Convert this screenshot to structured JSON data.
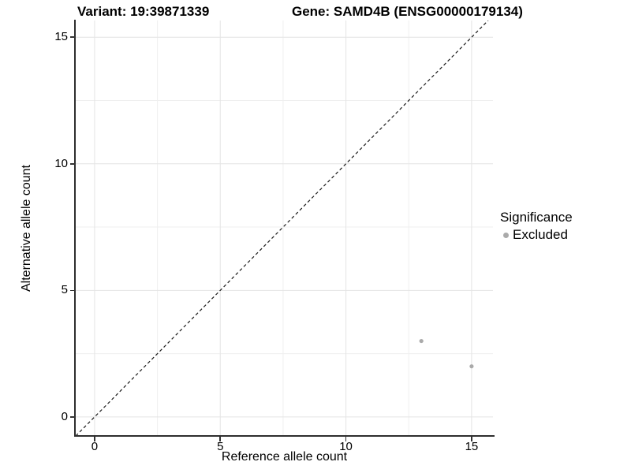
{
  "title": {
    "variant": "Variant: 19:39871339",
    "gene": "Gene: SAMD4B (ENSG00000179134)"
  },
  "axes": {
    "x_label": "Reference allele count",
    "y_label": "Alternative allele count"
  },
  "legend": {
    "title": "Significance",
    "items": [
      {
        "label": "Excluded",
        "color": "#aaaaaa"
      }
    ]
  },
  "chart_data": {
    "type": "scatter",
    "title": "Variant: 19:39871339    Gene: SAMD4B (ENSG00000179134)",
    "xlabel": "Reference allele count",
    "ylabel": "Alternative allele count",
    "xlim": [
      -0.75,
      15.85
    ],
    "ylim": [
      -0.75,
      15.66
    ],
    "x_ticks": [
      0,
      5,
      10,
      15
    ],
    "y_ticks": [
      0,
      5,
      10,
      15
    ],
    "x_minor_ticks": [
      2.5,
      7.5,
      12.5
    ],
    "y_minor_ticks": [
      2.5,
      7.5,
      12.5
    ],
    "grid": true,
    "legend_position": "right",
    "series": [
      {
        "name": "Excluded",
        "color": "#aaaaaa",
        "points": [
          {
            "x": 13,
            "y": 3
          },
          {
            "x": 15,
            "y": 2
          }
        ]
      }
    ],
    "reference_line": {
      "type": "identity",
      "slope": 1,
      "intercept": 0,
      "style": "dashed",
      "color": "#1a1a1a"
    },
    "style": {
      "point_radius": 2.6,
      "major_grid_color": "#e4e4e4",
      "minor_grid_color": "#efefef",
      "axis_line_color": "#2e2e2e",
      "background": "#ffffff"
    }
  }
}
